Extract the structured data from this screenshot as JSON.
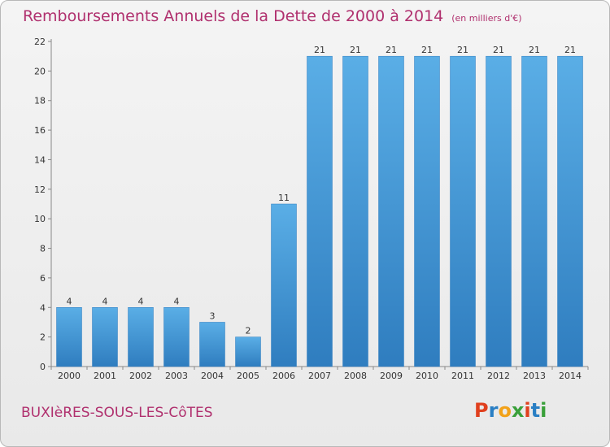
{
  "header": {
    "title": "Remboursements Annuels de la Dette de 2000 à 2014",
    "unit": "(en milliers d'€)"
  },
  "footer": {
    "commune": "BUXIèRES-SOUS-LES-CôTES",
    "brand_letters": [
      "P",
      "r",
      "o",
      "x",
      "i",
      "t",
      "i"
    ],
    "brand_colors": [
      "#e0401e",
      "#2a7fc4",
      "#f2a21a",
      "#3aa03a",
      "#e0401e",
      "#2a7fc4",
      "#3aa03a"
    ]
  },
  "chart_data": {
    "type": "bar",
    "title": "Remboursements Annuels de la Dette de 2000 à 2014",
    "xlabel": "",
    "ylabel": "",
    "categories": [
      "2000",
      "2001",
      "2002",
      "2003",
      "2004",
      "2005",
      "2006",
      "2007",
      "2008",
      "2009",
      "2010",
      "2011",
      "2012",
      "2013",
      "2014"
    ],
    "values": [
      4,
      4,
      4,
      4,
      3,
      2,
      11,
      21,
      21,
      21,
      21,
      21,
      21,
      21,
      21
    ],
    "ylim": [
      0,
      22
    ],
    "yticks": [
      0,
      2,
      4,
      6,
      8,
      10,
      12,
      14,
      16,
      18,
      20,
      22
    ],
    "grid": false,
    "bar_color_light": "#5aaee6",
    "bar_color_dark": "#2f7dbf"
  }
}
